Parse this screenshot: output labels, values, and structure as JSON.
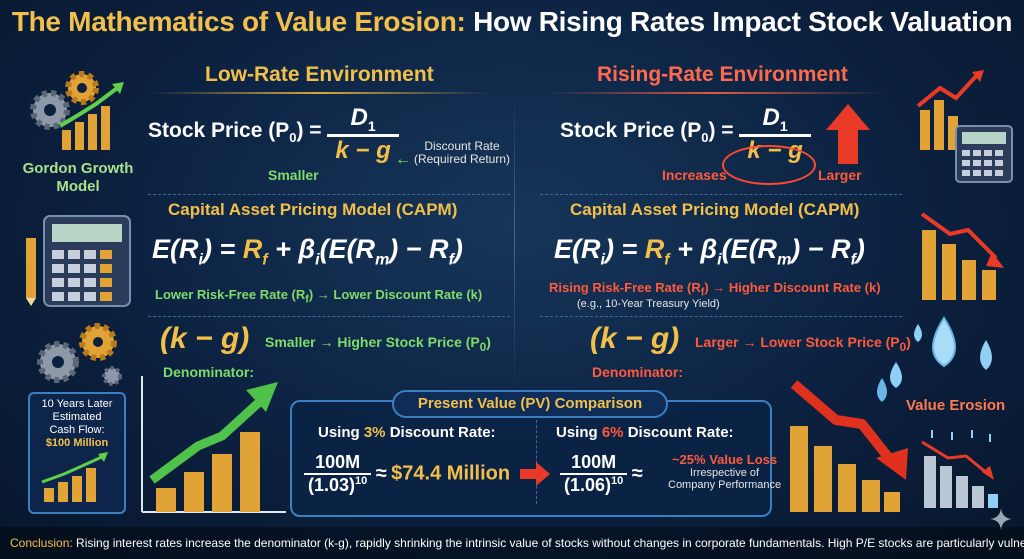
{
  "title": {
    "part1": "The Mathematics of Value Erosion:",
    "part2": "How Rising Rates Impact Stock Valuation"
  },
  "left": {
    "header": "Low-Rate Environment",
    "gordon": {
      "lhs": "Stock Price (P",
      "sub": "0",
      "rhs": ") =",
      "numerator": "D",
      "num_sub": "1",
      "denominator": "k − g",
      "discount_label": "Discount Rate",
      "discount_sub": "(Required Return)",
      "smaller": "Smaller"
    },
    "capm_header": "Capital Asset Pricing Model (CAPM)",
    "capm_note": "Lower Risk-Free Rate (R",
    "capm_note_sub": "f",
    "capm_note_end": ") → Lower Discount Rate (k)",
    "kg": "(k − g)",
    "kg_note": "Smaller → Higher Stock Price (P",
    "kg_note_sub": "0",
    "kg_note_end": ")",
    "denominator": "Denominator:"
  },
  "right": {
    "header": "Rising-Rate Environment",
    "gordon": {
      "lhs": "Stock Price (P",
      "sub": "0",
      "rhs": ") =",
      "numerator": "D",
      "num_sub": "1",
      "denominator": "k − g",
      "increases": "Increases",
      "larger": "Larger"
    },
    "capm_header": "Capital Asset Pricing Model (CAPM)",
    "capm_note": "Rising Risk-Free Rate (R",
    "capm_note_sub": "f",
    "capm_note_end": ") → Higher Discount Rate (k)",
    "capm_sub_note": "(e.g., 10-Year Treasury Yield)",
    "kg": "(k − g)",
    "kg_note": "Larger → Lower Stock Price (P",
    "kg_note_sub": "0",
    "kg_note_end": ")",
    "denominator": "Denominator:"
  },
  "capm_eq": {
    "e": "E(R",
    "i": "i",
    "eq": ") =",
    "rf": "R",
    "f": "f",
    "plus": "+ β",
    "beta_i": "i",
    "em": "(E(R",
    "m": "m",
    "minus": ") − R",
    "f2": "f",
    "close": ")"
  },
  "side": {
    "gordon_label": "Gordon Growth Model",
    "cashflow": {
      "l1": "10 Years Later",
      "l2": "Estimated",
      "l3": "Cash Flow:",
      "l4": "$100 Million"
    },
    "value_erosion": "Value Erosion"
  },
  "pv": {
    "title": "Present Value (PV) Comparison",
    "left_label_pre": "Using ",
    "left_rate": "3%",
    "left_label_post": " Discount Rate:",
    "left_num": "100M",
    "left_den": "(1.03)",
    "exp": "10",
    "approx": "≈",
    "left_result": "$74.4 Million",
    "right_label_pre": "Using ",
    "right_rate": "6%",
    "right_label_post": " Discount Rate:",
    "right_num": "100M",
    "right_den": "(1.06)",
    "loss": "~25% Value Loss",
    "loss_note1": "Irrespective of",
    "loss_note2": "Company Performance"
  },
  "conclusion": {
    "label": "Conclusion:",
    "text": " Rising interest rates increase the denominator (k-g), rapidly shrinking the intrinsic value of stocks without changes in corporate fundamentals. High P/E stocks are particularly vulnerable."
  },
  "colors": {
    "gold": "#f2c04a",
    "green": "#7fdc6a",
    "red": "#ff5a3c",
    "navy": "#0c2140"
  }
}
